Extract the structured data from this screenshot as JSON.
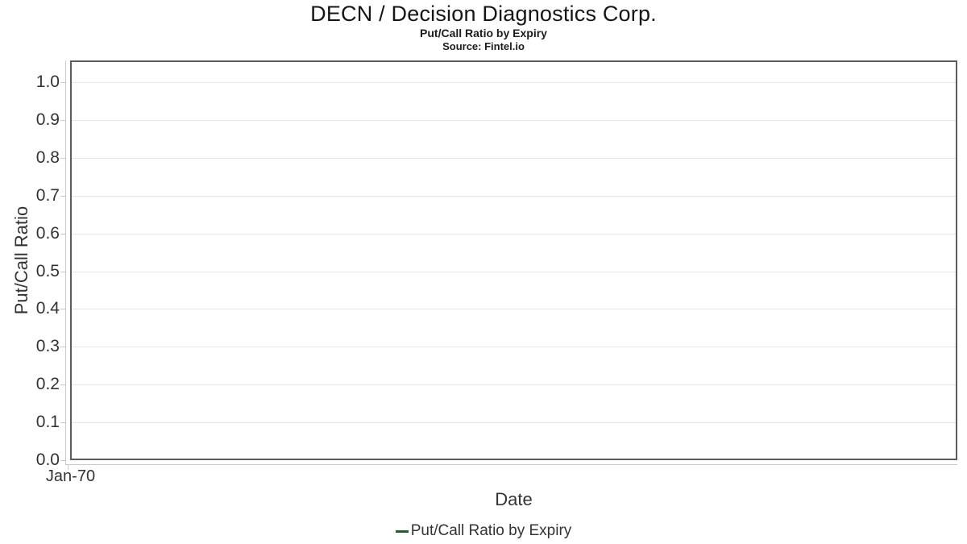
{
  "chart_data": {
    "type": "line",
    "title": "DECN / Decision Diagnostics Corp.",
    "subtitle": "Put/Call Ratio by Expiry",
    "source": "Source: Fintel.io",
    "xlabel": "Date",
    "ylabel": "Put/Call Ratio",
    "ylim": [
      0.0,
      1.05
    ],
    "yticks": [
      0.0,
      0.1,
      0.2,
      0.3,
      0.4,
      0.5,
      0.6,
      0.7,
      0.8,
      0.9,
      1.0
    ],
    "ytick_labels": [
      "0.0",
      "0.1",
      "0.2",
      "0.3",
      "0.4",
      "0.5",
      "0.6",
      "0.7",
      "0.8",
      "0.9",
      "1.0"
    ],
    "xticklabels": [
      "Jan-70"
    ],
    "grid": "horizontal",
    "legend_position": "bottom-center",
    "series": [
      {
        "name": "Put/Call Ratio by Expiry",
        "color": "#275b30",
        "x": [],
        "values": []
      }
    ]
  }
}
